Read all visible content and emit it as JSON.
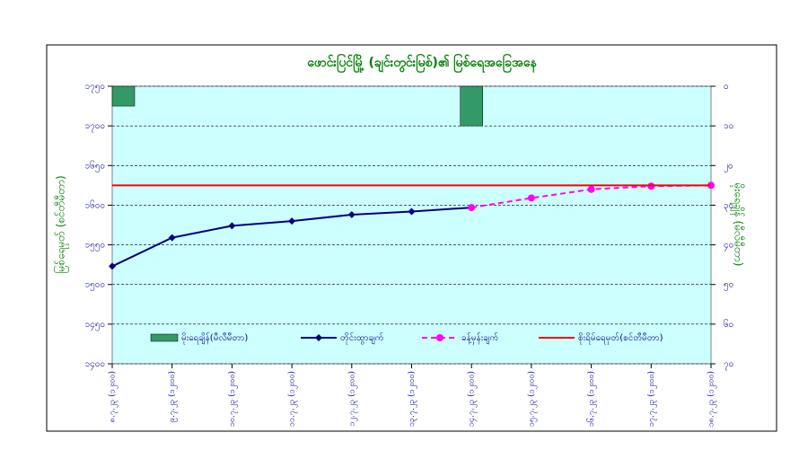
{
  "chart_data": {
    "type": "line",
    "title": "ဖောင်းပြင်မြို့ (ချင်းတွင်းမြစ်)၏ မြစ်ရေအခြေအနေ",
    "y_label": "မြစ်ရေမှတ် (စင်တီမီတာ)",
    "y2_label": "မိုးရေချိန် (မီလီမီတာ)",
    "categories": [
      "၈.၇.၂၃ (၁၂း၀၀)",
      "၉.၇.၂၃ (၁၂း၀၀)",
      "၁၀.၇.၂၃ (၁၂း၀၀)",
      "၁၁.၇.၂၃ (၁၂း၀၀)",
      "၁၂.၇.၂၃ (၁၂း၀၀)",
      "၁၃.၇.၂၃ (၁၂း၀၀)",
      "၁၄.၇.၂၃ (၁၂း၀၀)",
      "၁၅.၇.၂၃ (၁၂း၀၀)",
      "၁၆.၇.၂၃ (၁၂း၀၀)",
      "၁၇.၇.၂၃ (၁၂း၀၀)",
      "၁၈.၇.၂၃ (၁၂း၀၀)"
    ],
    "ylim": [
      1400,
      1750
    ],
    "yticks": [
      {
        "value": 1750,
        "label": "၁၇၅၀"
      },
      {
        "value": 1700,
        "label": "၁၇၀၀"
      },
      {
        "value": 1650,
        "label": "၁၆၅၀"
      },
      {
        "value": 1600,
        "label": "၁၆၀၀"
      },
      {
        "value": 1550,
        "label": "၁၅၅၀"
      },
      {
        "value": 1500,
        "label": "၁၅၀၀"
      },
      {
        "value": 1450,
        "label": "၁၄၅၀"
      },
      {
        "value": 1400,
        "label": "၁၄၀၀"
      }
    ],
    "y2lim": [
      0,
      70
    ],
    "y2_inverted": true,
    "y2ticks": [
      {
        "value": 0,
        "label": "၀"
      },
      {
        "value": 10,
        "label": "၁၀"
      },
      {
        "value": 20,
        "label": "၂၀"
      },
      {
        "value": 30,
        "label": "၃၀"
      },
      {
        "value": 40,
        "label": "၄၀"
      },
      {
        "value": 50,
        "label": "၅၀"
      },
      {
        "value": 60,
        "label": "၆၀"
      },
      {
        "value": 70,
        "label": "၇၀"
      }
    ],
    "grid": true,
    "series": [
      {
        "name": "မိုးရေချိန်(မီလီမီတာ)",
        "type": "bar",
        "axis": "y2",
        "color": "#339966",
        "values": [
          5,
          0,
          0,
          0,
          0,
          0,
          10,
          0,
          0,
          0,
          0
        ]
      },
      {
        "name": "တိုင်းထွာချက်",
        "type": "line",
        "color": "#000080",
        "marker": "diamond",
        "values": [
          1523,
          1559,
          1574,
          1580,
          1588,
          1592,
          1597,
          null,
          null,
          null,
          null
        ]
      },
      {
        "name": "ခန့်မှန်းချက်",
        "type": "line",
        "color": "#ff00ff",
        "dashed": true,
        "marker": "circle",
        "values": [
          null,
          null,
          null,
          null,
          null,
          null,
          1597,
          1609,
          1620,
          1624,
          1625
        ]
      },
      {
        "name": "စိုးရိမ်ရေမှတ်(စင်တီမီတာ)",
        "type": "line",
        "color": "#ff0000",
        "values": [
          1625,
          1625,
          1625,
          1625,
          1625,
          1625,
          1625,
          1625,
          1625,
          1625,
          1625
        ]
      }
    ]
  }
}
